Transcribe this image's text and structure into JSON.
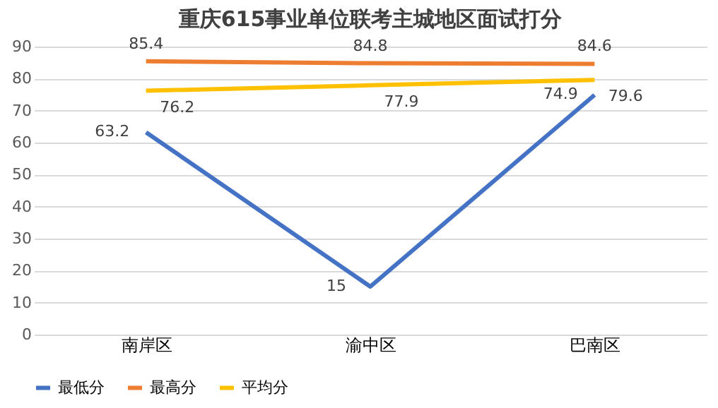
{
  "chart_data": {
    "type": "line",
    "title": "重庆615事业单位联考主城地区面试打分",
    "categories": [
      "南岸区",
      "渝中区",
      "巴南区"
    ],
    "series": [
      {
        "name": "最低分",
        "color": "#4472c4",
        "values": [
          63.2,
          15,
          74.9
        ]
      },
      {
        "name": "最高分",
        "color": "#ed7d31",
        "values": [
          85.4,
          84.8,
          84.6
        ]
      },
      {
        "name": "平均分",
        "color": "#ffc000",
        "values": [
          76.2,
          77.9,
          79.6
        ]
      }
    ],
    "ylim": [
      0,
      90
    ],
    "yticks": [
      0,
      10,
      20,
      30,
      40,
      50,
      60,
      70,
      80,
      90
    ],
    "grid": "y",
    "legend": "bottom",
    "data_labels": true,
    "marker": "none",
    "line_style": "solid"
  }
}
